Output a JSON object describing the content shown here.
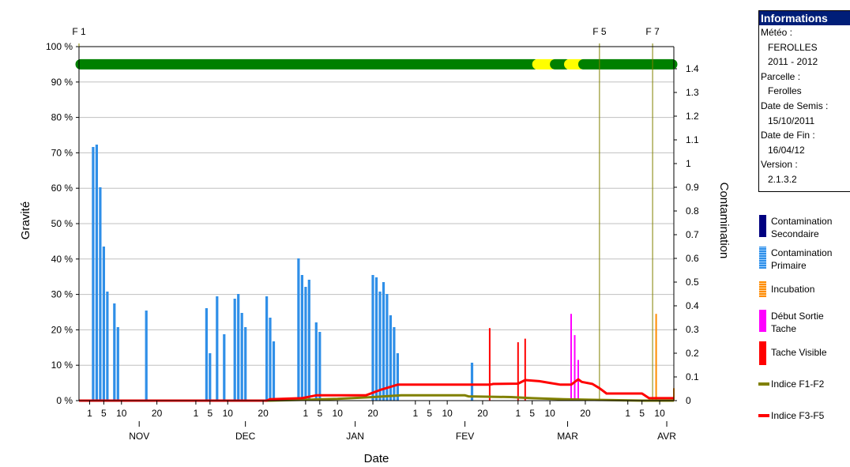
{
  "chart_data": {
    "type": "bar",
    "xlabel": "Date",
    "ylabel": "Gravité",
    "y2label": "Contamination",
    "y_ticks": [
      "0 %",
      "10 %",
      "20 %",
      "30 %",
      "40 %",
      "50 %",
      "60 %",
      "70 %",
      "80 %",
      "90 %",
      "100 %"
    ],
    "y2_ticks": [
      "0",
      "0.1",
      "0.2",
      "0.3",
      "0.4",
      "0.5",
      "0.6",
      "0.7",
      "0.8",
      "0.9",
      "1",
      "1.1",
      "1.2",
      "1.3",
      "1.4"
    ],
    "ylim": [
      0,
      100
    ],
    "y2lim": [
      0,
      1.4
    ],
    "grid": true,
    "x_start_date": "2011-10-29",
    "x_end_date": "2012-04-14",
    "day_ticks": [
      {
        "label": "1",
        "date": "2011-11-01"
      },
      {
        "label": "5",
        "date": "2011-11-05"
      },
      {
        "label": "10",
        "date": "2011-11-10"
      },
      {
        "label": "20",
        "date": "2011-11-20"
      },
      {
        "label": "1",
        "date": "2011-12-01"
      },
      {
        "label": "5",
        "date": "2011-12-05"
      },
      {
        "label": "10",
        "date": "2011-12-10"
      },
      {
        "label": "20",
        "date": "2011-12-20"
      },
      {
        "label": "1",
        "date": "2012-01-01"
      },
      {
        "label": "5",
        "date": "2012-01-05"
      },
      {
        "label": "10",
        "date": "2012-01-10"
      },
      {
        "label": "20",
        "date": "2012-01-20"
      },
      {
        "label": "1",
        "date": "2012-02-01"
      },
      {
        "label": "5",
        "date": "2012-02-05"
      },
      {
        "label": "10",
        "date": "2012-02-10"
      },
      {
        "label": "20",
        "date": "2012-02-20"
      },
      {
        "label": "1",
        "date": "2012-03-01"
      },
      {
        "label": "5",
        "date": "2012-03-05"
      },
      {
        "label": "10",
        "date": "2012-03-10"
      },
      {
        "label": "20",
        "date": "2012-03-20"
      },
      {
        "label": "1",
        "date": "2012-04-01"
      },
      {
        "label": "5",
        "date": "2012-04-05"
      },
      {
        "label": "10",
        "date": "2012-04-10"
      }
    ],
    "month_labels": [
      {
        "label": "NOV",
        "date": "2011-11-15"
      },
      {
        "label": "DEC",
        "date": "2011-12-15"
      },
      {
        "label": "JAN",
        "date": "2012-01-15"
      },
      {
        "label": "FEV",
        "date": "2012-02-15"
      },
      {
        "label": "MAR",
        "date": "2012-03-15"
      },
      {
        "label": "AVR",
        "date": "2012-04-12"
      }
    ],
    "stage_markers": [
      {
        "label": "F 1",
        "date": "2011-10-29"
      },
      {
        "label": "F 5",
        "date": "2012-03-24"
      },
      {
        "label": "F 7",
        "date": "2012-04-08"
      }
    ],
    "weather_band": {
      "y_percent": 95,
      "segments": [
        {
          "start": "2011-10-29",
          "end": "2012-03-06",
          "color": "#008000"
        },
        {
          "start": "2012-03-06",
          "end": "2012-03-11",
          "color": "#ffff00"
        },
        {
          "start": "2012-03-11",
          "end": "2012-03-15",
          "color": "#008000"
        },
        {
          "start": "2012-03-15",
          "end": "2012-03-19",
          "color": "#ffff00"
        },
        {
          "start": "2012-03-19",
          "end": "2012-04-14",
          "color": "#008000"
        }
      ]
    },
    "series": [
      {
        "name": "Contamination Primaire",
        "kind": "bar",
        "color": "#2f8fe8",
        "axis": "y2",
        "points": [
          {
            "date": "2011-11-02",
            "value": 1.07
          },
          {
            "date": "2011-11-03",
            "value": 1.08
          },
          {
            "date": "2011-11-04",
            "value": 0.9
          },
          {
            "date": "2011-11-05",
            "value": 0.65
          },
          {
            "date": "2011-11-06",
            "value": 0.46
          },
          {
            "date": "2011-11-08",
            "value": 0.41
          },
          {
            "date": "2011-11-09",
            "value": 0.31
          },
          {
            "date": "2011-11-17",
            "value": 0.38
          },
          {
            "date": "2011-12-04",
            "value": 0.39
          },
          {
            "date": "2011-12-05",
            "value": 0.2
          },
          {
            "date": "2011-12-07",
            "value": 0.44
          },
          {
            "date": "2011-12-09",
            "value": 0.28
          },
          {
            "date": "2011-12-12",
            "value": 0.43
          },
          {
            "date": "2011-12-13",
            "value": 0.45
          },
          {
            "date": "2011-12-14",
            "value": 0.37
          },
          {
            "date": "2011-12-15",
            "value": 0.31
          },
          {
            "date": "2011-12-21",
            "value": 0.44
          },
          {
            "date": "2011-12-22",
            "value": 0.35
          },
          {
            "date": "2011-12-23",
            "value": 0.25
          },
          {
            "date": "2011-12-30",
            "value": 0.6
          },
          {
            "date": "2011-12-31",
            "value": 0.53
          },
          {
            "date": "2012-01-01",
            "value": 0.48
          },
          {
            "date": "2012-01-02",
            "value": 0.51
          },
          {
            "date": "2012-01-04",
            "value": 0.33
          },
          {
            "date": "2012-01-05",
            "value": 0.29
          },
          {
            "date": "2012-01-20",
            "value": 0.53
          },
          {
            "date": "2012-01-21",
            "value": 0.52
          },
          {
            "date": "2012-01-22",
            "value": 0.46
          },
          {
            "date": "2012-01-23",
            "value": 0.5
          },
          {
            "date": "2012-01-24",
            "value": 0.45
          },
          {
            "date": "2012-01-25",
            "value": 0.36
          },
          {
            "date": "2012-01-26",
            "value": 0.31
          },
          {
            "date": "2012-01-27",
            "value": 0.2
          },
          {
            "date": "2012-02-17",
            "value": 0.16
          }
        ]
      },
      {
        "name": "Contamination Secondaire",
        "kind": "bar",
        "color": "#000080",
        "axis": "y2",
        "points": []
      },
      {
        "name": "Incubation",
        "kind": "bar",
        "color": "#ff8c00",
        "axis": "y",
        "points": [
          {
            "date": "2012-04-09",
            "value": 24.5
          },
          {
            "date": "2012-04-14",
            "value": 3.5
          }
        ]
      },
      {
        "name": "Début Sortie Tache",
        "kind": "bar",
        "color": "#ff00ff",
        "axis": "y",
        "points": [
          {
            "date": "2012-03-16",
            "value": 24.5
          },
          {
            "date": "2012-03-17",
            "value": 18.5
          },
          {
            "date": "2012-03-18",
            "value": 11.5
          }
        ]
      },
      {
        "name": "Tache Visible",
        "kind": "bar",
        "color": "#ff0000",
        "axis": "y",
        "points": [
          {
            "date": "2012-02-22",
            "value": 20.5
          },
          {
            "date": "2012-03-01",
            "value": 16.5
          },
          {
            "date": "2012-03-03",
            "value": 17.5
          }
        ]
      },
      {
        "name": "Indice F1-F2",
        "kind": "line",
        "color": "#808000",
        "axis": "y",
        "points": [
          {
            "date": "2011-10-29",
            "value": 0
          },
          {
            "date": "2011-12-22",
            "value": 0
          },
          {
            "date": "2012-01-02",
            "value": 0.3
          },
          {
            "date": "2012-01-10",
            "value": 0.5
          },
          {
            "date": "2012-01-20",
            "value": 1
          },
          {
            "date": "2012-01-28",
            "value": 1.5
          },
          {
            "date": "2012-02-15",
            "value": 1.5
          },
          {
            "date": "2012-02-16",
            "value": 1.2
          },
          {
            "date": "2012-02-28",
            "value": 1
          },
          {
            "date": "2012-03-05",
            "value": 0.7
          },
          {
            "date": "2012-03-14",
            "value": 0.4
          },
          {
            "date": "2012-03-24",
            "value": 0.2
          },
          {
            "date": "2012-04-05",
            "value": 0
          },
          {
            "date": "2012-04-14",
            "value": 0
          }
        ]
      },
      {
        "name": "Indice F3-F5",
        "kind": "line",
        "color": "#ff0000",
        "axis": "y",
        "points": [
          {
            "date": "2011-10-29",
            "value": 0
          },
          {
            "date": "2011-12-21",
            "value": 0
          },
          {
            "date": "2011-12-22",
            "value": 0.4
          },
          {
            "date": "2011-12-31",
            "value": 0.7
          },
          {
            "date": "2012-01-04",
            "value": 1.5
          },
          {
            "date": "2012-01-18",
            "value": 1.5
          },
          {
            "date": "2012-01-22",
            "value": 3
          },
          {
            "date": "2012-01-27",
            "value": 4.5
          },
          {
            "date": "2012-02-22",
            "value": 4.5
          },
          {
            "date": "2012-02-23",
            "value": 4.7
          },
          {
            "date": "2012-03-01",
            "value": 4.8
          },
          {
            "date": "2012-03-03",
            "value": 5.8
          },
          {
            "date": "2012-03-07",
            "value": 5.5
          },
          {
            "date": "2012-03-10",
            "value": 5
          },
          {
            "date": "2012-03-13",
            "value": 4.5
          },
          {
            "date": "2012-03-16",
            "value": 4.5
          },
          {
            "date": "2012-03-18",
            "value": 6
          },
          {
            "date": "2012-03-19",
            "value": 5.3
          },
          {
            "date": "2012-03-22",
            "value": 4.7
          },
          {
            "date": "2012-03-24",
            "value": 3.5
          },
          {
            "date": "2012-03-26",
            "value": 2
          },
          {
            "date": "2012-03-30",
            "value": 2
          },
          {
            "date": "2012-04-05",
            "value": 2
          },
          {
            "date": "2012-04-07",
            "value": 0.7
          },
          {
            "date": "2012-04-14",
            "value": 0.7
          }
        ]
      }
    ]
  },
  "info": {
    "title": "Informations",
    "meteo_label": "Météo :",
    "meteo_value1": "FEROLLES",
    "meteo_value2": "2011 - 2012",
    "parcelle_label": "Parcelle :",
    "parcelle_value": "Ferolles",
    "semis_label": "Date de Semis :",
    "semis_value": "15/10/2011",
    "fin_label": "Date de Fin :",
    "fin_value": "16/04/12",
    "version_label": "Version :",
    "version_value": "2.1.3.2"
  },
  "legend": {
    "secondaire_line1": "Contamination",
    "secondaire_line2": "Secondaire",
    "primaire_line1": "Contamination",
    "primaire_line2": "Primaire",
    "incubation": "Incubation",
    "debut_line1": "Début Sortie",
    "debut_line2": "Tache",
    "tache_visible": "Tache Visible",
    "indice_f1f2": "Indice F1-F2",
    "indice_f3f5": "Indice F3-F5"
  }
}
